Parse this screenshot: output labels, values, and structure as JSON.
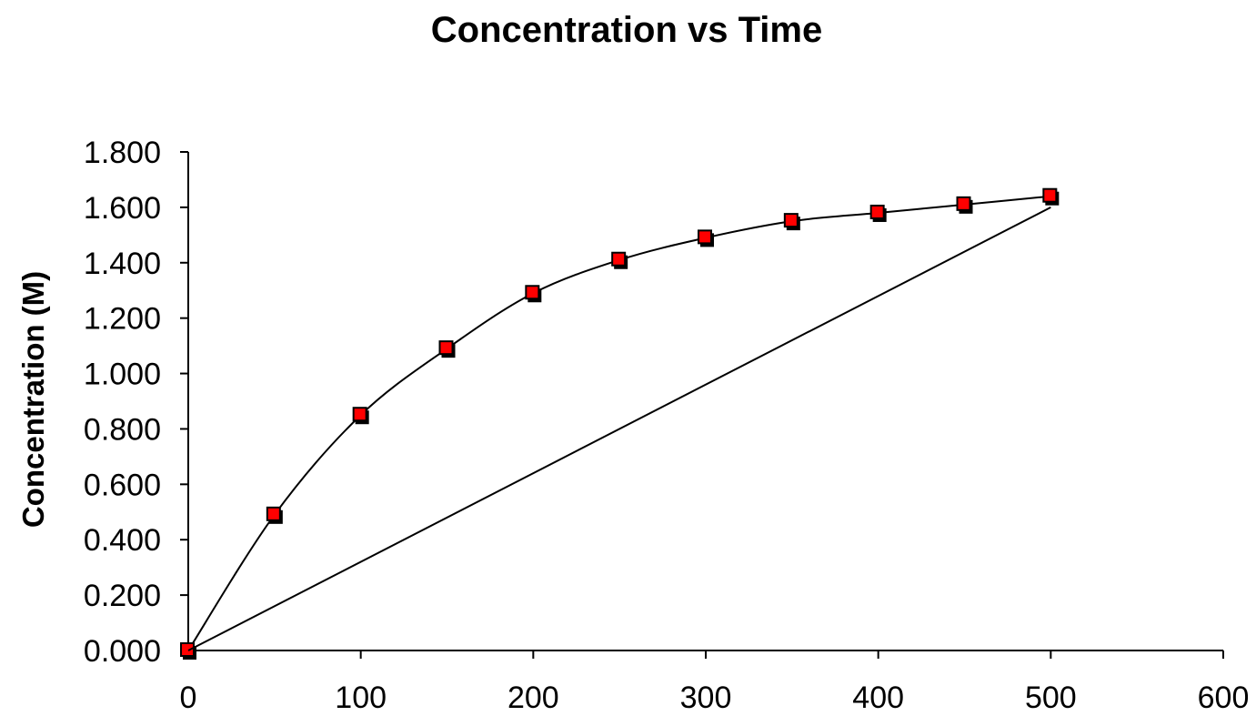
{
  "chart_data": {
    "type": "line",
    "title": "Concentration vs Time",
    "xlabel": "",
    "ylabel": "Concentration (M)",
    "xlim": [
      0,
      600
    ],
    "ylim": [
      0,
      1.8
    ],
    "x_ticks": [
      "0",
      "100",
      "200",
      "300",
      "400",
      "500",
      "600"
    ],
    "y_ticks": [
      "0.000",
      "0.200",
      "0.400",
      "0.600",
      "0.800",
      "1.000",
      "1.200",
      "1.400",
      "1.600",
      "1.800"
    ],
    "grid": false,
    "legend": "none",
    "series": [
      {
        "x": [
          0,
          50,
          100,
          150,
          200,
          250,
          300,
          350,
          400,
          450,
          500
        ],
        "y": [
          0.0,
          0.49,
          0.85,
          1.09,
          1.29,
          1.41,
          1.49,
          1.55,
          1.58,
          1.61,
          1.64
        ],
        "marker": "square",
        "marker_color": "#ff0000",
        "line_color": "#000000",
        "smooth": true
      },
      {
        "x": [
          0,
          500
        ],
        "y": [
          0.0,
          1.6
        ],
        "marker": "none",
        "line_color": "#000000",
        "smooth": false
      }
    ]
  }
}
